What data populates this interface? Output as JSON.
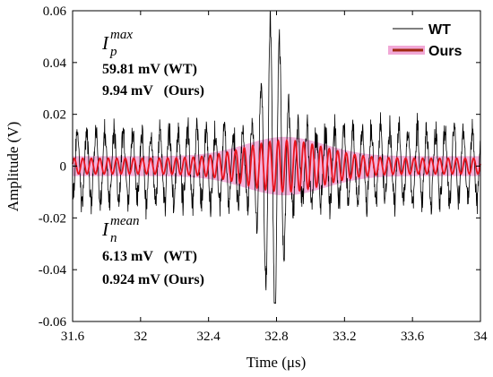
{
  "chart_data": {
    "type": "line",
    "xlabel": "Time (μs)",
    "ylabel": "Amplitude (V)",
    "xlim": [
      31.6,
      34.0
    ],
    "ylim": [
      -0.06,
      0.06
    ],
    "x_ticks": [
      "31.6",
      "32",
      "32.4",
      "32.8",
      "33.2",
      "33.6",
      "34"
    ],
    "y_ticks": [
      "-0.06",
      "-0.04",
      "-0.02",
      "0",
      "0.02",
      "0.04",
      "0.06"
    ],
    "grid": false,
    "legend_position": "top-right",
    "series": [
      {
        "name": "WT",
        "color": "#000000",
        "peak_time": 32.78,
        "peak_amplitude": 0.0598,
        "negative_peak_amplitude": -0.053,
        "background_amplitude": 0.015
      },
      {
        "name": "Ours",
        "color": "#e8141f",
        "envelope_color": "#ef9ad0",
        "legend_color": "#a02810",
        "peak_time": 32.85,
        "peak_amplitude": 0.0099,
        "background_amplitude": 0.003
      }
    ],
    "annotations": {
      "top": {
        "symbol": "I",
        "sub": "p",
        "sup": "max",
        "lines": [
          "59.81 mV (WT)",
          "9.94 mV   (Ours)"
        ]
      },
      "bottom": {
        "symbol": "I",
        "sub": "n",
        "sup": "mean",
        "lines": [
          "6.13 mV   (WT)",
          "0.924 mV (Ours)"
        ]
      }
    }
  }
}
